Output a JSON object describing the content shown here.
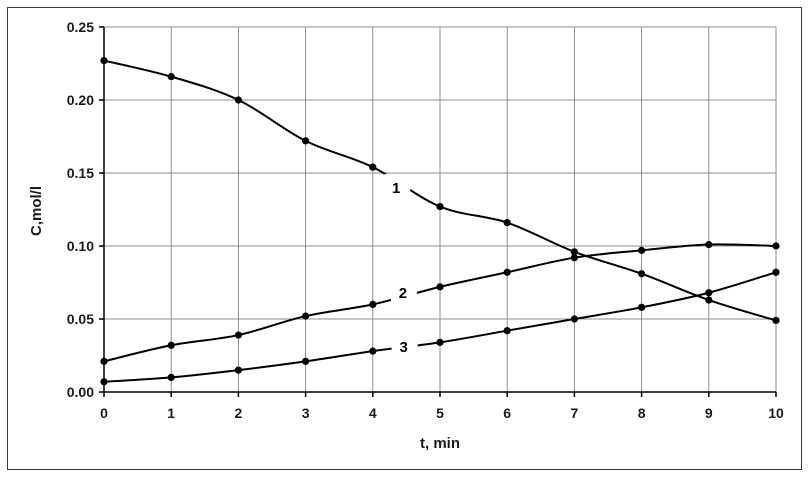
{
  "chart_data": {
    "type": "line",
    "xlabel": "t, min",
    "ylabel": "C,mol/l",
    "x": [
      0,
      1,
      2,
      3,
      4,
      5,
      6,
      7,
      8,
      9,
      10
    ],
    "xlim": [
      0,
      10
    ],
    "ylim": [
      0,
      0.25
    ],
    "x_ticks": [
      "0",
      "1",
      "2",
      "3",
      "4",
      "5",
      "6",
      "7",
      "8",
      "9",
      "10"
    ],
    "y_ticks": [
      "0.00",
      "0.05",
      "0.10",
      "0.15",
      "0.20",
      "0.25"
    ],
    "grid": true,
    "series": [
      {
        "name": "1",
        "values": [
          0.227,
          0.216,
          0.2,
          0.172,
          0.154,
          0.127,
          0.116,
          0.096,
          0.081,
          0.063,
          0.049
        ]
      },
      {
        "name": "2",
        "values": [
          0.021,
          0.032,
          0.039,
          0.052,
          0.06,
          0.072,
          0.082,
          0.092,
          0.097,
          0.101,
          0.1
        ]
      },
      {
        "name": "3",
        "values": [
          0.007,
          0.01,
          0.015,
          0.021,
          0.028,
          0.034,
          0.042,
          0.05,
          0.058,
          0.068,
          0.082
        ]
      }
    ],
    "colors": {
      "line": "#000000",
      "grid": "#8c8c8c",
      "axis": "#000000"
    }
  }
}
